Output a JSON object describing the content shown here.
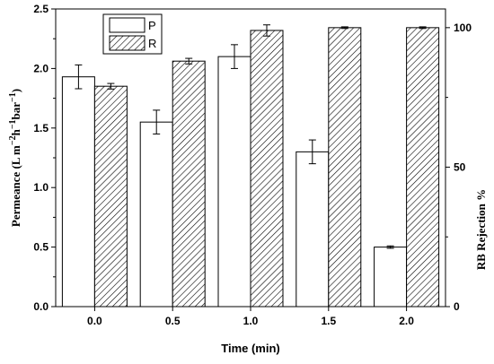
{
  "chart_data": {
    "type": "bar",
    "categories": [
      "0.0",
      "0.5",
      "1.0",
      "1.5",
      "2.0"
    ],
    "series": [
      {
        "name": "P",
        "axis": "left",
        "values": [
          1.93,
          1.55,
          2.1,
          1.3,
          0.5
        ],
        "errors": [
          0.1,
          0.1,
          0.1,
          0.1,
          0.01
        ],
        "fill": "white"
      },
      {
        "name": "R",
        "axis": "right",
        "values": [
          79,
          88,
          99,
          100,
          100
        ],
        "errors": [
          1,
          1,
          2,
          0.3,
          0.3
        ],
        "fill": "hatched"
      }
    ],
    "xlabel": "Time (min)",
    "ylabel_left": "Permeance (L m−2h−1bar−1)",
    "ylabel_left_parts": {
      "base": "Permeance (L m",
      "sup1": "−2",
      "mid1": "h",
      "sup2": "−1",
      "mid2": "bar",
      "sup3": "−1",
      "end": ")"
    },
    "ylabel_right": "RB Rejection %",
    "ylim_left": [
      0,
      2.5
    ],
    "ylim_right": [
      0,
      106.7
    ],
    "yticks_left": [
      "0.0",
      "0.5",
      "1.0",
      "1.5",
      "2.0",
      "2.5"
    ],
    "yticks_right": [
      "0",
      "50",
      "100"
    ],
    "legend_position": "top-left",
    "grid": false
  }
}
